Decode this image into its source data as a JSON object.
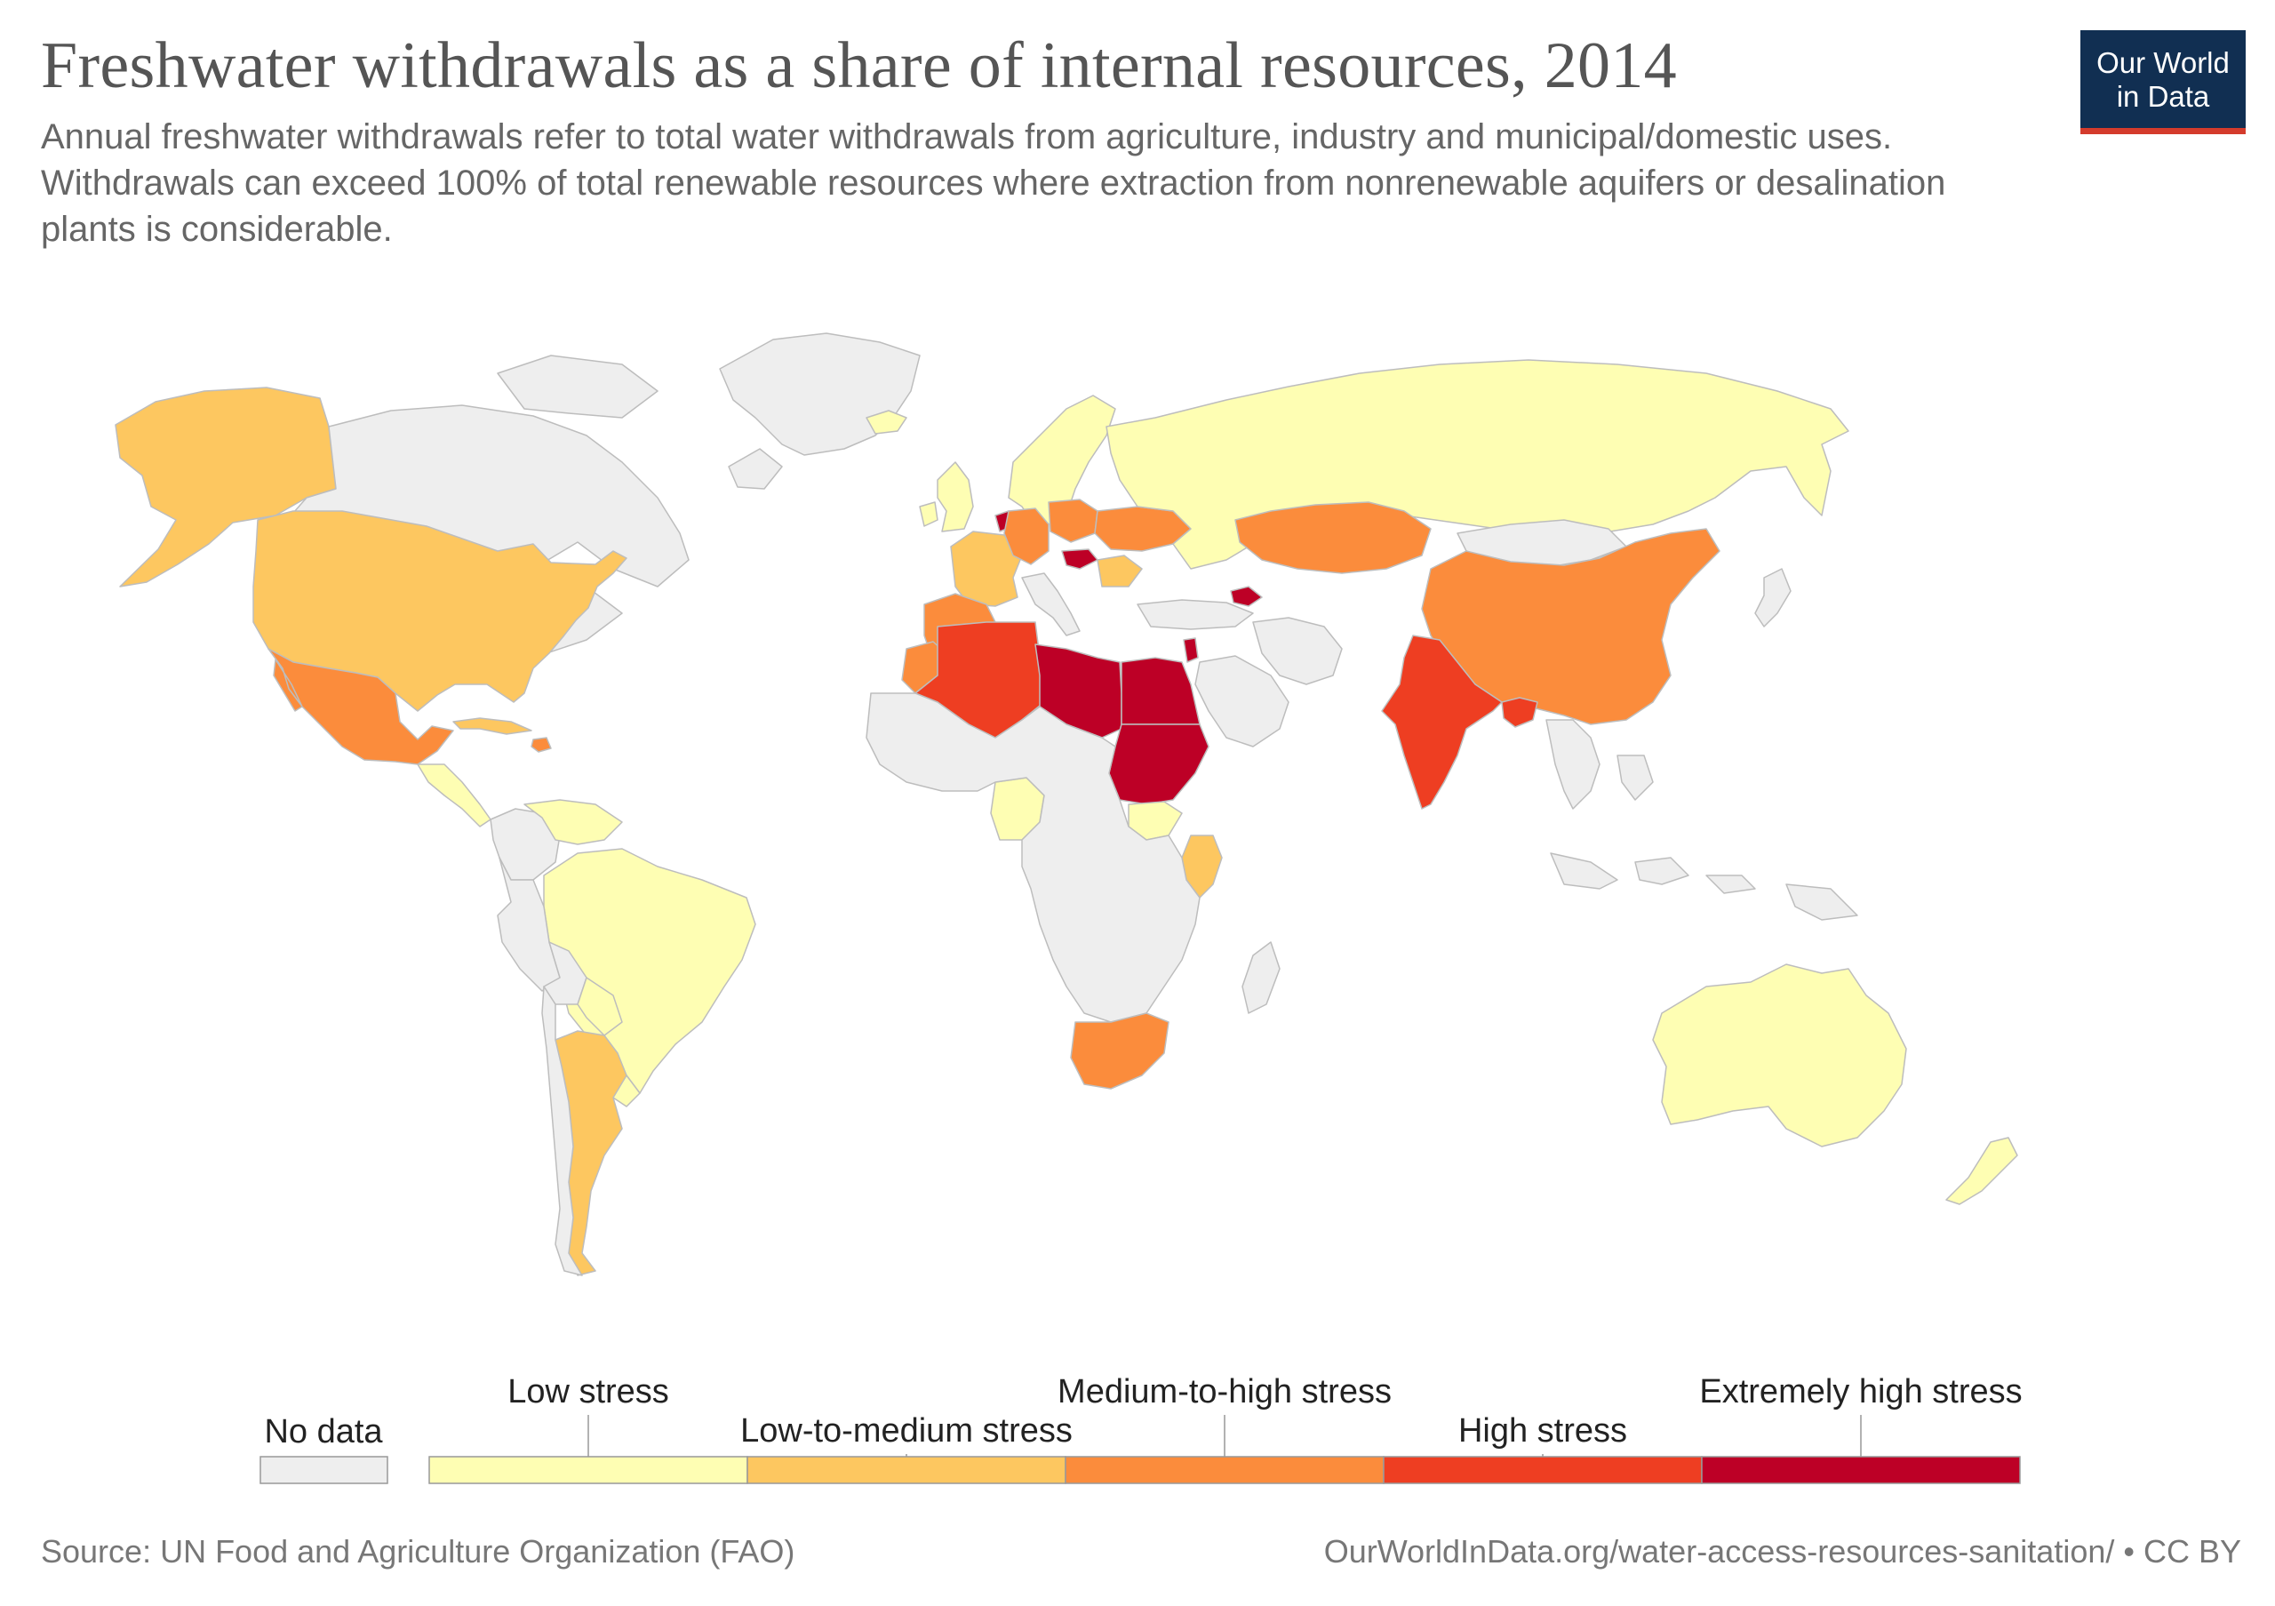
{
  "header": {
    "title": "Freshwater withdrawals as a share of internal resources, 2014",
    "subtitle": "Annual freshwater withdrawals refer to total water withdrawals from agriculture, industry and municipal/domestic uses. Withdrawals can exceed 100% of total renewable resources where extraction from nonrenewable aquifers or desalination plants is considerable.",
    "logo_line1": "Our World",
    "logo_line2": "in Data"
  },
  "legend": {
    "no_data_label": "No data",
    "no_data_color": "#eeeeee",
    "bins": [
      {
        "label": "Low stress",
        "color": "#fefeb3"
      },
      {
        "label": "Low-to-medium stress",
        "color": "#fdc760"
      },
      {
        "label": "Medium-to-high stress",
        "color": "#fb8c3c"
      },
      {
        "label": "High stress",
        "color": "#ee3e22"
      },
      {
        "label": "Extremely high stress",
        "color": "#bd0026"
      }
    ]
  },
  "footer": {
    "source": "Source: UN Food and Agriculture Organization (FAO)",
    "license": "OurWorldInData.org/water-access-resources-sanitation/ • CC BY"
  },
  "map_regions": [
    {
      "name": "Alaska",
      "bin": 1
    },
    {
      "name": "Canada",
      "bin": -1
    },
    {
      "name": "Greenland",
      "bin": -1
    },
    {
      "name": "United States",
      "bin": 1
    },
    {
      "name": "Mexico",
      "bin": 2
    },
    {
      "name": "Cuba",
      "bin": 1
    },
    {
      "name": "Dominican Republic",
      "bin": 2
    },
    {
      "name": "Central America",
      "bin": 0
    },
    {
      "name": "Colombia",
      "bin": -1
    },
    {
      "name": "Venezuela",
      "bin": 0
    },
    {
      "name": "Brazil",
      "bin": 0
    },
    {
      "name": "Peru",
      "bin": -1
    },
    {
      "name": "Bolivia",
      "bin": -1
    },
    {
      "name": "Paraguay",
      "bin": 0
    },
    {
      "name": "Uruguay",
      "bin": 0
    },
    {
      "name": "Argentina",
      "bin": 1
    },
    {
      "name": "Chile",
      "bin": -1
    },
    {
      "name": "Iceland",
      "bin": 0
    },
    {
      "name": "United Kingdom",
      "bin": 0
    },
    {
      "name": "Ireland",
      "bin": 0
    },
    {
      "name": "Scandinavia",
      "bin": 0
    },
    {
      "name": "France",
      "bin": 1
    },
    {
      "name": "Spain",
      "bin": 2
    },
    {
      "name": "Netherlands",
      "bin": 4
    },
    {
      "name": "Germany",
      "bin": 2
    },
    {
      "name": "Poland",
      "bin": 2
    },
    {
      "name": "Italy",
      "bin": -1
    },
    {
      "name": "Hungary",
      "bin": 4
    },
    {
      "name": "Romania",
      "bin": 1
    },
    {
      "name": "Ukraine",
      "bin": 2
    },
    {
      "name": "Turkey",
      "bin": -1
    },
    {
      "name": "Azerbaijan",
      "bin": 4
    },
    {
      "name": "Russia",
      "bin": 0
    },
    {
      "name": "Kazakhstan",
      "bin": 2
    },
    {
      "name": "Mongolia",
      "bin": -1
    },
    {
      "name": "China",
      "bin": 2
    },
    {
      "name": "India",
      "bin": 3
    },
    {
      "name": "Bangladesh",
      "bin": 3
    },
    {
      "name": "Iran",
      "bin": -1
    },
    {
      "name": "Saudi Arabia",
      "bin": -1
    },
    {
      "name": "Morocco",
      "bin": 2
    },
    {
      "name": "Algeria",
      "bin": 3
    },
    {
      "name": "Libya",
      "bin": 4
    },
    {
      "name": "Egypt",
      "bin": 4
    },
    {
      "name": "Sudan",
      "bin": 4
    },
    {
      "name": "Israel",
      "bin": 4
    },
    {
      "name": "Nigeria",
      "bin": 0
    },
    {
      "name": "South Sudan",
      "bin": 0
    },
    {
      "name": "Kenya",
      "bin": 1
    },
    {
      "name": "Central Africa",
      "bin": -1
    },
    {
      "name": "Madagascar",
      "bin": -1
    },
    {
      "name": "South Africa",
      "bin": 2
    },
    {
      "name": "Japan",
      "bin": -1
    },
    {
      "name": "Southeast Asia",
      "bin": -1
    },
    {
      "name": "Indonesia",
      "bin": -1
    },
    {
      "name": "Papua New Guinea",
      "bin": -1
    },
    {
      "name": "Australia",
      "bin": 0
    },
    {
      "name": "New Zealand",
      "bin": 0
    }
  ]
}
